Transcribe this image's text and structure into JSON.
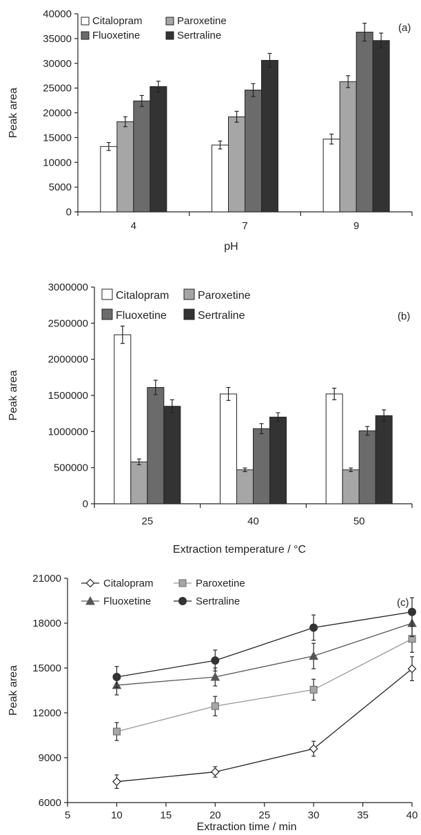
{
  "chart_data": [
    {
      "type": "bar",
      "panel_label": "(a)",
      "xlabel": "pH",
      "ylabel": "Peak area",
      "categories": [
        "4",
        "7",
        "9"
      ],
      "ylim": [
        0,
        40000
      ],
      "yticks": [
        0,
        5000,
        10000,
        15000,
        20000,
        25000,
        30000,
        35000,
        40000
      ],
      "grid": false,
      "legend_position": "top-left",
      "series": [
        {
          "name": "Citalopram",
          "color": "#ffffff",
          "values": [
            13200,
            13500,
            14700
          ],
          "errors": [
            800,
            800,
            1000
          ]
        },
        {
          "name": "Paroxetine",
          "color": "#a6a6a6",
          "values": [
            18200,
            19200,
            26300
          ],
          "errors": [
            1000,
            1100,
            1200
          ]
        },
        {
          "name": "Fluoxetine",
          "color": "#6b6b6b",
          "values": [
            22400,
            24600,
            36300
          ],
          "errors": [
            1100,
            1300,
            1800
          ]
        },
        {
          "name": "Sertraline",
          "color": "#333333",
          "values": [
            25300,
            30600,
            34600
          ],
          "errors": [
            1100,
            1400,
            1500
          ]
        }
      ]
    },
    {
      "type": "bar",
      "panel_label": "(b)",
      "xlabel": "Extraction temperature / °C",
      "ylabel": "Peak area",
      "categories": [
        "25",
        "40",
        "50"
      ],
      "ylim": [
        0,
        3000000
      ],
      "yticks": [
        0,
        500000,
        1000000,
        1500000,
        2000000,
        2500000,
        3000000
      ],
      "grid": false,
      "legend_position": "top",
      "series": [
        {
          "name": "Citalopram",
          "color": "#ffffff",
          "values": [
            2340000,
            1520000,
            1520000
          ],
          "errors": [
            120000,
            90000,
            80000
          ]
        },
        {
          "name": "Paroxetine",
          "color": "#a6a6a6",
          "values": [
            580000,
            470000,
            470000
          ],
          "errors": [
            40000,
            25000,
            25000
          ]
        },
        {
          "name": "Fluoxetine",
          "color": "#6b6b6b",
          "values": [
            1610000,
            1040000,
            1010000
          ],
          "errors": [
            100000,
            70000,
            60000
          ]
        },
        {
          "name": "Sertraline",
          "color": "#333333",
          "values": [
            1350000,
            1200000,
            1220000
          ],
          "errors": [
            90000,
            60000,
            80000
          ]
        }
      ]
    },
    {
      "type": "line",
      "panel_label": "(c)",
      "xlabel": "Extraction time / min",
      "ylabel": "Peak area",
      "x": [
        10,
        20,
        30,
        40
      ],
      "xlim": [
        5,
        40
      ],
      "ylim": [
        6000,
        21000
      ],
      "xticks": [
        5,
        10,
        15,
        20,
        25,
        30,
        35,
        40
      ],
      "yticks": [
        6000,
        9000,
        12000,
        15000,
        18000,
        21000
      ],
      "grid": false,
      "legend_position": "top",
      "series": [
        {
          "name": "Citalopram",
          "marker": "diamond",
          "line_color": "#222222",
          "marker_fill": "#ffffff",
          "values": [
            7400,
            8050,
            9600,
            14950
          ],
          "errors": [
            450,
            350,
            500,
            800
          ]
        },
        {
          "name": "Paroxetine",
          "marker": "square",
          "line_color": "#999999",
          "marker_fill": "#a6a6a6",
          "values": [
            10750,
            12450,
            13550,
            16950
          ],
          "errors": [
            600,
            650,
            700,
            900
          ]
        },
        {
          "name": "Fluoxetine",
          "marker": "triangle",
          "line_color": "#555555",
          "marker_fill": "#555555",
          "values": [
            13850,
            14400,
            15800,
            18000
          ],
          "errors": [
            650,
            600,
            850,
            900
          ]
        },
        {
          "name": "Sertraline",
          "marker": "circle",
          "line_color": "#222222",
          "marker_fill": "#333333",
          "values": [
            14400,
            15500,
            17700,
            18750
          ],
          "errors": [
            700,
            700,
            850,
            950
          ]
        }
      ]
    }
  ]
}
